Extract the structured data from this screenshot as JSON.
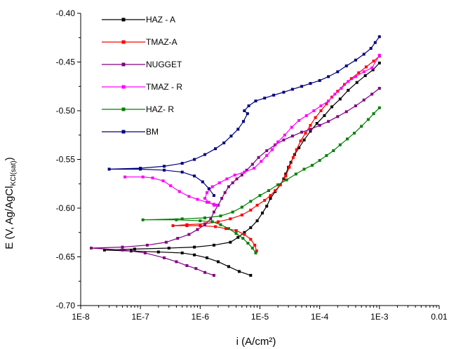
{
  "chart_data": {
    "type": "scatter",
    "title": "",
    "xlabel": "i (A/cm²)",
    "ylabel": "E (V, Ag/AgCl",
    "ylabel_subscript": "KCl(sat)",
    "ylabel_close": ")",
    "x_scale": "log",
    "xlim": [
      1e-08,
      0.01
    ],
    "ylim": [
      -0.7,
      -0.4
    ],
    "x_ticks": [
      1e-08,
      1e-07,
      1e-06,
      1e-05,
      0.0001,
      0.001,
      0.01
    ],
    "x_tick_labels": [
      "1E-8",
      "1E-7",
      "1E-6",
      "1E-5",
      "1E-4",
      "1E-3",
      "0.01"
    ],
    "y_ticks": [
      -0.7,
      -0.65,
      -0.6,
      -0.55,
      -0.5,
      -0.45,
      -0.4
    ],
    "y_tick_labels": [
      "-0.70",
      "-0.65",
      "-0.60",
      "-0.55",
      "-0.50",
      "-0.45",
      "-0.40"
    ],
    "grid": false,
    "legend_position": "top-left",
    "series": [
      {
        "name": "HAZ - A",
        "color": "#000000",
        "points": [
          [
            7e-06,
            -0.669
          ],
          [
            4.5e-06,
            -0.665
          ],
          [
            3e-06,
            -0.66
          ],
          [
            2e-06,
            -0.655
          ],
          [
            1.3e-06,
            -0.651
          ],
          [
            8e-07,
            -0.648
          ],
          [
            5e-07,
            -0.646
          ],
          [
            2e-07,
            -0.645
          ],
          [
            7e-08,
            -0.644
          ],
          [
            2.5e-08,
            -0.643
          ],
          [
            8e-08,
            -0.642
          ],
          [
            3e-07,
            -0.641
          ],
          [
            8e-07,
            -0.64
          ],
          [
            1.7e-06,
            -0.638
          ],
          [
            3.2e-06,
            -0.635
          ],
          [
            4.3e-06,
            -0.63
          ],
          [
            5.5e-06,
            -0.625
          ],
          [
            7e-06,
            -0.62
          ],
          [
            9e-06,
            -0.613
          ],
          [
            1.1e-05,
            -0.605
          ],
          [
            1.3e-05,
            -0.598
          ],
          [
            1.5e-05,
            -0.59
          ],
          [
            1.8e-05,
            -0.583
          ],
          [
            2.2e-05,
            -0.576
          ],
          [
            2.5e-05,
            -0.57
          ],
          [
            2.7e-05,
            -0.565
          ],
          [
            3e-05,
            -0.558
          ],
          [
            3.3e-05,
            -0.553
          ],
          [
            3.8e-05,
            -0.545
          ],
          [
            4.5e-05,
            -0.538
          ],
          [
            5.5e-05,
            -0.53
          ],
          [
            7e-05,
            -0.521
          ],
          [
            9e-05,
            -0.513
          ],
          [
            0.00012,
            -0.505
          ],
          [
            0.00016,
            -0.496
          ],
          [
            0.00022,
            -0.488
          ],
          [
            0.0003,
            -0.479
          ],
          [
            0.00042,
            -0.471
          ],
          [
            0.00058,
            -0.464
          ],
          [
            0.00078,
            -0.458
          ],
          [
            0.001,
            -0.451
          ]
        ]
      },
      {
        "name": "TMAZ-A",
        "color": "#ff0000",
        "points": [
          [
            8.8e-06,
            -0.644
          ],
          [
            8.2e-06,
            -0.638
          ],
          [
            7e-06,
            -0.632
          ],
          [
            5.5e-06,
            -0.627
          ],
          [
            4e-06,
            -0.623
          ],
          [
            2.7e-06,
            -0.621
          ],
          [
            1.8e-06,
            -0.619
          ],
          [
            1e-06,
            -0.618
          ],
          [
            6e-07,
            -0.618
          ],
          [
            3.5e-07,
            -0.618
          ],
          [
            6e-07,
            -0.617
          ],
          [
            1.2e-06,
            -0.616
          ],
          [
            2e-06,
            -0.614
          ],
          [
            3.2e-06,
            -0.611
          ],
          [
            5e-06,
            -0.607
          ],
          [
            7e-06,
            -0.602
          ],
          [
            9e-06,
            -0.597
          ],
          [
            1.2e-05,
            -0.592
          ],
          [
            1.5e-05,
            -0.587
          ],
          [
            1.8e-05,
            -0.582
          ],
          [
            2.2e-05,
            -0.576
          ],
          [
            2.7e-05,
            -0.567
          ],
          [
            3.1e-05,
            -0.558
          ],
          [
            3.6e-05,
            -0.548
          ],
          [
            4.1e-05,
            -0.54
          ],
          [
            4.8e-05,
            -0.531
          ],
          [
            5.8e-05,
            -0.523
          ],
          [
            7e-05,
            -0.515
          ],
          [
            8.5e-05,
            -0.507
          ],
          [
            0.000105,
            -0.5
          ],
          [
            0.00013,
            -0.493
          ],
          [
            0.00016,
            -0.486
          ],
          [
            0.0002,
            -0.48
          ],
          [
            0.00026,
            -0.473
          ],
          [
            0.00034,
            -0.467
          ],
          [
            0.00045,
            -0.461
          ],
          [
            0.0006,
            -0.455
          ],
          [
            0.0008,
            -0.449
          ],
          [
            0.001,
            -0.444
          ]
        ]
      },
      {
        "name": "NUGGET",
        "color": "#800080",
        "points": [
          [
            1.7e-06,
            -0.669
          ],
          [
            1.2e-06,
            -0.666
          ],
          [
            8.5e-07,
            -0.662
          ],
          [
            6e-07,
            -0.659
          ],
          [
            4e-07,
            -0.655
          ],
          [
            2.5e-07,
            -0.651
          ],
          [
            1.2e-07,
            -0.646
          ],
          [
            5e-08,
            -0.643
          ],
          [
            1.5e-08,
            -0.641
          ],
          [
            5e-08,
            -0.64
          ],
          [
            1.3e-07,
            -0.638
          ],
          [
            2.7e-07,
            -0.635
          ],
          [
            4.2e-07,
            -0.631
          ],
          [
            6.5e-07,
            -0.627
          ],
          [
            9e-07,
            -0.622
          ],
          [
            1.2e-06,
            -0.617
          ],
          [
            1.5e-06,
            -0.611
          ],
          [
            1.7e-06,
            -0.604
          ],
          [
            2e-06,
            -0.597
          ],
          [
            2.3e-06,
            -0.59
          ],
          [
            2.6e-06,
            -0.584
          ],
          [
            3e-06,
            -0.578
          ],
          [
            3.5e-06,
            -0.574
          ],
          [
            4.1e-06,
            -0.57
          ],
          [
            5e-06,
            -0.566
          ],
          [
            6e-06,
            -0.561
          ],
          [
            7.5e-06,
            -0.555
          ],
          [
            9.5e-06,
            -0.548
          ],
          [
            1.3e-05,
            -0.541
          ],
          [
            1.8e-05,
            -0.535
          ],
          [
            2.5e-05,
            -0.53
          ],
          [
            3.5e-05,
            -0.526
          ],
          [
            5e-05,
            -0.522
          ],
          [
            7e-05,
            -0.519
          ],
          [
            0.0001,
            -0.515
          ],
          [
            0.00014,
            -0.511
          ],
          [
            0.0002,
            -0.506
          ],
          [
            0.00028,
            -0.501
          ],
          [
            0.0004,
            -0.495
          ],
          [
            0.00055,
            -0.489
          ],
          [
            0.00075,
            -0.483
          ],
          [
            0.001,
            -0.477
          ]
        ]
      },
      {
        "name": "TMAZ - R",
        "color": "#ff00ff",
        "points": [
          [
            5.5e-08,
            -0.568
          ],
          [
            1.1e-07,
            -0.568
          ],
          [
            1.6e-07,
            -0.569
          ],
          [
            2.4e-07,
            -0.572
          ],
          [
            3.2e-07,
            -0.577
          ],
          [
            4.5e-07,
            -0.583
          ],
          [
            6.5e-07,
            -0.588
          ],
          [
            9e-07,
            -0.591
          ],
          [
            1.3e-06,
            -0.594
          ],
          [
            1.7e-06,
            -0.596
          ],
          [
            1.9e-06,
            -0.597
          ],
          [
            1.7e-06,
            -0.597
          ],
          [
            1.4e-06,
            -0.594
          ],
          [
            1.2e-06,
            -0.59
          ],
          [
            1.3e-06,
            -0.584
          ],
          [
            1.6e-06,
            -0.578
          ],
          [
            2.1e-06,
            -0.574
          ],
          [
            2.8e-06,
            -0.57
          ],
          [
            3.8e-06,
            -0.566
          ],
          [
            5.5e-06,
            -0.563
          ],
          [
            8e-06,
            -0.559
          ],
          [
            1.05e-05,
            -0.552
          ],
          [
            1.3e-05,
            -0.546
          ],
          [
            1.6e-05,
            -0.54
          ],
          [
            2e-05,
            -0.532
          ],
          [
            2.6e-05,
            -0.525
          ],
          [
            3.4e-05,
            -0.517
          ],
          [
            4.5e-05,
            -0.51
          ],
          [
            6e-05,
            -0.505
          ],
          [
            8e-05,
            -0.5
          ],
          [
            0.000105,
            -0.495
          ],
          [
            0.00014,
            -0.49
          ],
          [
            0.00018,
            -0.483
          ],
          [
            0.00023,
            -0.477
          ],
          [
            0.0003,
            -0.47
          ],
          [
            0.0004,
            -0.465
          ],
          [
            0.00055,
            -0.46
          ],
          [
            0.00075,
            -0.456
          ],
          [
            0.001,
            -0.443
          ]
        ]
      },
      {
        "name": "HAZ- R",
        "color": "#008000",
        "points": [
          [
            8.5e-06,
            -0.646
          ],
          [
            7.5e-06,
            -0.641
          ],
          [
            6.3e-06,
            -0.636
          ],
          [
            5.2e-06,
            -0.631
          ],
          [
            4e-06,
            -0.626
          ],
          [
            3e-06,
            -0.621
          ],
          [
            2.2e-06,
            -0.617
          ],
          [
            1.6e-06,
            -0.614
          ],
          [
            1e-06,
            -0.613
          ],
          [
            4e-07,
            -0.612
          ],
          [
            1.1e-07,
            -0.612
          ],
          [
            5e-07,
            -0.611
          ],
          [
            1.2e-06,
            -0.61
          ],
          [
            2.2e-06,
            -0.608
          ],
          [
            3.5e-06,
            -0.604
          ],
          [
            5e-06,
            -0.599
          ],
          [
            7e-06,
            -0.593
          ],
          [
            1e-05,
            -0.587
          ],
          [
            1.4e-05,
            -0.582
          ],
          [
            2e-05,
            -0.576
          ],
          [
            2.8e-05,
            -0.571
          ],
          [
            4e-05,
            -0.565
          ],
          [
            5.5e-05,
            -0.56
          ],
          [
            7.5e-05,
            -0.556
          ],
          [
            0.0001,
            -0.551
          ],
          [
            0.00013,
            -0.546
          ],
          [
            0.00017,
            -0.541
          ],
          [
            0.00022,
            -0.535
          ],
          [
            0.00029,
            -0.529
          ],
          [
            0.00038,
            -0.523
          ],
          [
            0.0005,
            -0.516
          ],
          [
            0.00065,
            -0.509
          ],
          [
            0.0008,
            -0.503
          ],
          [
            0.001,
            -0.497
          ]
        ]
      },
      {
        "name": "BM",
        "color": "#000080",
        "points": [
          [
            1.7e-06,
            -0.587
          ],
          [
            1.4e-06,
            -0.58
          ],
          [
            1.1e-06,
            -0.573
          ],
          [
            8e-07,
            -0.567
          ],
          [
            5e-07,
            -0.563
          ],
          [
            2.5e-07,
            -0.561
          ],
          [
            1e-07,
            -0.56
          ],
          [
            3e-08,
            -0.56
          ],
          [
            1e-07,
            -0.559
          ],
          [
            2.5e-07,
            -0.557
          ],
          [
            5e-07,
            -0.554
          ],
          [
            8e-07,
            -0.55
          ],
          [
            1.2e-06,
            -0.545
          ],
          [
            1.8e-06,
            -0.539
          ],
          [
            2.5e-06,
            -0.533
          ],
          [
            3.3e-06,
            -0.526
          ],
          [
            4.3e-06,
            -0.519
          ],
          [
            5.3e-06,
            -0.511
          ],
          [
            6.2e-06,
            -0.503
          ],
          [
            5.5e-06,
            -0.5
          ],
          [
            6.5e-06,
            -0.495
          ],
          [
            8.5e-06,
            -0.49
          ],
          [
            1.2e-05,
            -0.487
          ],
          [
            1.7e-05,
            -0.484
          ],
          [
            2.5e-05,
            -0.481
          ],
          [
            3.5e-05,
            -0.478
          ],
          [
            5e-05,
            -0.475
          ],
          [
            7e-05,
            -0.472
          ],
          [
            0.0001,
            -0.469
          ],
          [
            0.00014,
            -0.465
          ],
          [
            0.0002,
            -0.46
          ],
          [
            0.00028,
            -0.454
          ],
          [
            0.0004,
            -0.448
          ],
          [
            0.00055,
            -0.442
          ],
          [
            0.00072,
            -0.436
          ],
          [
            0.00085,
            -0.43
          ],
          [
            0.001,
            -0.424
          ]
        ]
      }
    ]
  }
}
